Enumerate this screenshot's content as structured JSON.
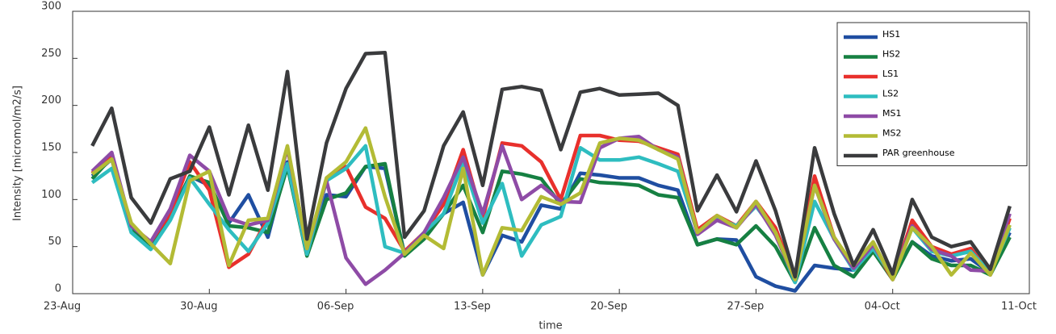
{
  "chart_data": {
    "type": "line",
    "xlabel": "time",
    "ylabel": "Intensity [micromol/m2/s]",
    "x": [
      "24-Aug",
      "25-Aug",
      "26-Aug",
      "27-Aug",
      "28-Aug",
      "29-Aug",
      "30-Aug",
      "31-Aug",
      "01-Sep",
      "02-Sep",
      "03-Sep",
      "04-Sep",
      "05-Sep",
      "06-Sep",
      "07-Sep",
      "08-Sep",
      "09-Sep",
      "10-Sep",
      "11-Sep",
      "12-Sep",
      "13-Sep",
      "14-Sep",
      "15-Sep",
      "16-Sep",
      "17-Sep",
      "18-Sep",
      "19-Sep",
      "20-Sep",
      "21-Sep",
      "22-Sep",
      "23-Sep",
      "24-Sep",
      "25-Sep",
      "26-Sep",
      "27-Sep",
      "28-Sep",
      "29-Sep",
      "30-Sep",
      "01-Oct",
      "02-Oct",
      "03-Oct",
      "04-Oct",
      "05-Oct",
      "06-Oct",
      "07-Oct",
      "08-Oct",
      "09-Oct",
      "10-Oct"
    ],
    "xlim": [
      "23-Aug",
      "11-Oct"
    ],
    "xticks": [
      "23-Aug",
      "30-Aug",
      "06-Sep",
      "13-Sep",
      "20-Sep",
      "27-Sep",
      "04-Oct",
      "11-Oct"
    ],
    "ylim": [
      0,
      300
    ],
    "yticks": [
      0,
      50,
      100,
      150,
      200,
      250,
      300
    ],
    "grid": false,
    "legend": "upper right",
    "series": [
      {
        "name": "HS1",
        "color": "#1f4ea1",
        "values": [
          125,
          143,
          70,
          52,
          82,
          125,
          115,
          75,
          105,
          60,
          140,
          42,
          105,
          103,
          135,
          133,
          42,
          60,
          85,
          97,
          20,
          62,
          55,
          94,
          90,
          128,
          126,
          123,
          123,
          115,
          110,
          52,
          58,
          57,
          18,
          8,
          3,
          30,
          27,
          25,
          50,
          17,
          55,
          40,
          35,
          37,
          22,
          65
        ]
      },
      {
        "name": "HS2",
        "color": "#168042",
        "values": [
          122,
          145,
          70,
          52,
          80,
          125,
          118,
          72,
          70,
          65,
          135,
          40,
          100,
          107,
          135,
          138,
          40,
          58,
          85,
          115,
          65,
          130,
          127,
          122,
          95,
          122,
          118,
          117,
          115,
          105,
          102,
          52,
          58,
          52,
          72,
          50,
          12,
          70,
          30,
          18,
          45,
          15,
          55,
          37,
          30,
          30,
          20,
          60
        ]
      },
      {
        "name": "LS1",
        "color": "#e8302c",
        "values": [
          128,
          148,
          72,
          55,
          85,
          140,
          110,
          28,
          42,
          80,
          155,
          48,
          120,
          135,
          92,
          80,
          45,
          65,
          95,
          153,
          80,
          160,
          157,
          140,
          100,
          168,
          168,
          163,
          162,
          155,
          148,
          68,
          83,
          72,
          98,
          70,
          15,
          125,
          60,
          28,
          50,
          15,
          78,
          50,
          42,
          48,
          20,
          80
        ]
      },
      {
        "name": "LS2",
        "color": "#2ebdc0",
        "values": [
          118,
          133,
          65,
          47,
          78,
          123,
          95,
          68,
          45,
          75,
          138,
          42,
          120,
          133,
          157,
          50,
          43,
          65,
          85,
          140,
          75,
          117,
          40,
          73,
          82,
          155,
          142,
          142,
          145,
          138,
          130,
          65,
          80,
          72,
          93,
          65,
          12,
          98,
          58,
          25,
          48,
          18,
          70,
          45,
          40,
          45,
          22,
          70
        ]
      },
      {
        "name": "MS1",
        "color": "#8e4ba6",
        "values": [
          130,
          150,
          72,
          55,
          90,
          147,
          130,
          80,
          73,
          78,
          155,
          48,
          120,
          38,
          10,
          25,
          43,
          65,
          102,
          145,
          85,
          157,
          100,
          115,
          98,
          97,
          155,
          165,
          167,
          153,
          145,
          63,
          78,
          70,
          95,
          62,
          15,
          115,
          58,
          27,
          52,
          18,
          72,
          47,
          40,
          25,
          24,
          85
        ]
      },
      {
        "name": "MS2",
        "color": "#b3bb35",
        "values": [
          127,
          143,
          75,
          53,
          32,
          120,
          130,
          30,
          78,
          80,
          157,
          48,
          123,
          140,
          176,
          103,
          42,
          62,
          48,
          133,
          20,
          70,
          67,
          103,
          95,
          107,
          160,
          165,
          163,
          153,
          143,
          65,
          83,
          70,
          98,
          65,
          15,
          115,
          60,
          30,
          55,
          15,
          70,
          50,
          20,
          43,
          20,
          73
        ]
      },
      {
        "name": "PAR greenhouse",
        "color": "#3a3b3d",
        "values": [
          157,
          197,
          102,
          75,
          122,
          130,
          177,
          105,
          179,
          110,
          236,
          58,
          160,
          218,
          255,
          256,
          60,
          88,
          157,
          193,
          115,
          217,
          220,
          216,
          153,
          214,
          218,
          211,
          212,
          213,
          200,
          88,
          126,
          87,
          141,
          88,
          18,
          155,
          85,
          30,
          68,
          21,
          100,
          60,
          50,
          55,
          26,
          93
        ]
      }
    ]
  }
}
